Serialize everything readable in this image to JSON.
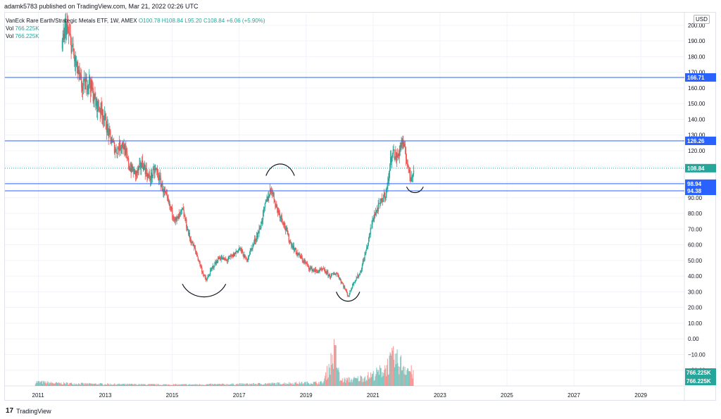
{
  "header": {
    "publish_line": "adamk5783 published on TradingView.com, Mar 21, 2022 02:26 UTC"
  },
  "legend": {
    "symbol": "VanEck Rare Earth/Strategic Metals ETF, 1W, AMEX",
    "open": "O100.78",
    "high": "H108.84",
    "low": "L95.20",
    "close": "C108.84",
    "change": "+6.06 (+5.90%)",
    "vol_label_1": "Vol",
    "vol_value_1": "766.225K",
    "vol_label_2": "Vol",
    "vol_value_2": "766.225K"
  },
  "currency": "USD",
  "brand": {
    "logo": "17",
    "name": "TradingView"
  },
  "colors": {
    "up": "#26a69a",
    "down": "#ef5350",
    "line": "#2962ff",
    "label": "#2962ff",
    "last": "#26a69a"
  },
  "chart_data": {
    "type": "candlestick",
    "interval": "1W",
    "x_ticks": [
      "2011",
      "2013",
      "2015",
      "2017",
      "2019",
      "2021",
      "2023",
      "2025",
      "2027",
      "2029"
    ],
    "x_range": [
      2010.0,
      2030.3
    ],
    "y_ticks": [
      200,
      190,
      180,
      170,
      160,
      150,
      140,
      130,
      120,
      110,
      100,
      90,
      80,
      70,
      60,
      50,
      40,
      30,
      20,
      10,
      0,
      -10,
      -20
    ],
    "y_tick_labels": [
      "200.00",
      "190.00",
      "180.00",
      "170.00",
      "160.00",
      "150.00",
      "140.00",
      "130.00",
      "120.00",
      "110.00",
      "100.00",
      "90.00",
      "80.00",
      "70.00",
      "60.00",
      "50.00",
      "40.00",
      "30.00",
      "20.00",
      "10.00",
      "0.00",
      "−10.00",
      "−20.00"
    ],
    "y_range": [
      -30,
      208
    ],
    "last_price": {
      "value": 108.84,
      "label": "108.84"
    },
    "horizontal_lines": [
      {
        "value": 166.71,
        "label": "166.71"
      },
      {
        "value": 126.26,
        "label": "126.26"
      },
      {
        "value": 98.94,
        "label": "98.94"
      },
      {
        "value": 94.38,
        "label": "94.38"
      }
    ],
    "volume_labels": [
      "766.225K",
      "766.225K"
    ],
    "price_path": [
      [
        2011.7,
        185
      ],
      [
        2011.8,
        200
      ],
      [
        2011.95,
        190
      ],
      [
        2012.1,
        175
      ],
      [
        2012.3,
        160
      ],
      [
        2012.5,
        165
      ],
      [
        2012.7,
        150
      ],
      [
        2012.9,
        145
      ],
      [
        2013.1,
        130
      ],
      [
        2013.3,
        120
      ],
      [
        2013.5,
        125
      ],
      [
        2013.7,
        110
      ],
      [
        2013.9,
        105
      ],
      [
        2014.1,
        112
      ],
      [
        2014.3,
        102
      ],
      [
        2014.5,
        108
      ],
      [
        2014.7,
        96
      ],
      [
        2014.9,
        85
      ],
      [
        2015.1,
        75
      ],
      [
        2015.3,
        82
      ],
      [
        2015.5,
        65
      ],
      [
        2015.7,
        55
      ],
      [
        2015.9,
        42
      ],
      [
        2016.0,
        37
      ],
      [
        2016.2,
        46
      ],
      [
        2016.4,
        52
      ],
      [
        2016.6,
        50
      ],
      [
        2016.8,
        53
      ],
      [
        2017.0,
        58
      ],
      [
        2017.2,
        50
      ],
      [
        2017.4,
        60
      ],
      [
        2017.6,
        70
      ],
      [
        2017.8,
        88
      ],
      [
        2017.95,
        96
      ],
      [
        2018.1,
        84
      ],
      [
        2018.3,
        75
      ],
      [
        2018.5,
        62
      ],
      [
        2018.7,
        55
      ],
      [
        2018.9,
        50
      ],
      [
        2019.1,
        45
      ],
      [
        2019.3,
        43
      ],
      [
        2019.5,
        44
      ],
      [
        2019.7,
        40
      ],
      [
        2019.9,
        42
      ],
      [
        2020.1,
        34
      ],
      [
        2020.25,
        27
      ],
      [
        2020.4,
        36
      ],
      [
        2020.6,
        42
      ],
      [
        2020.8,
        58
      ],
      [
        2021.0,
        78
      ],
      [
        2021.2,
        86
      ],
      [
        2021.4,
        95
      ],
      [
        2021.55,
        120
      ],
      [
        2021.7,
        115
      ],
      [
        2021.85,
        126
      ],
      [
        2022.0,
        114
      ],
      [
        2022.1,
        102
      ],
      [
        2022.2,
        108.84
      ]
    ],
    "volume_path": [
      [
        2010.9,
        3
      ],
      [
        2011.5,
        2
      ],
      [
        2012.5,
        1.5
      ],
      [
        2013.5,
        1.2
      ],
      [
        2014.5,
        1
      ],
      [
        2015.5,
        1
      ],
      [
        2016.5,
        1.2
      ],
      [
        2017.5,
        1.5
      ],
      [
        2018.5,
        2
      ],
      [
        2019.5,
        2.5
      ],
      [
        2019.85,
        26
      ],
      [
        2020.0,
        4
      ],
      [
        2020.5,
        5
      ],
      [
        2021.0,
        8
      ],
      [
        2021.3,
        12
      ],
      [
        2021.6,
        20
      ],
      [
        2021.9,
        15
      ],
      [
        2022.2,
        9
      ]
    ],
    "annotations": [
      {
        "type": "cup",
        "x": [
          2015.3,
          2016.6
        ],
        "y": [
          35,
          24
        ]
      },
      {
        "type": "cap",
        "x": [
          2017.8,
          2018.65
        ],
        "y": [
          104,
          114
        ]
      },
      {
        "type": "cup",
        "x": [
          2019.9,
          2020.6
        ],
        "y": [
          30,
          22
        ]
      },
      {
        "type": "cup",
        "x": [
          2022.0,
          2022.5
        ],
        "y": [
          97,
          92
        ]
      }
    ]
  }
}
